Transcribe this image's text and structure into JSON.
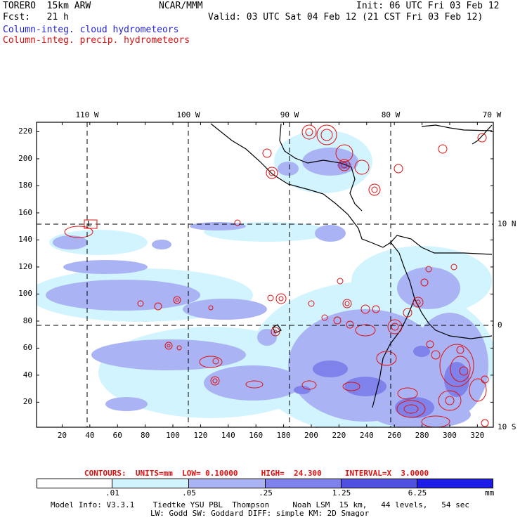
{
  "header": {
    "model": "TORERO  15km ARW",
    "center": "NCAR/MMM",
    "init": "Init: 06 UTC Fri 03 Feb 12",
    "fcst": "Fcst:   21 h",
    "valid": "Valid: 03 UTC Sat 04 Feb 12 (21 CST Fri 03 Feb 12)",
    "field1": "Column-integ. cloud hydrometeors",
    "field2": "Column-integ. precip. hydrometeors"
  },
  "map": {
    "lon_labels": [
      "110 W",
      "100 W",
      "90 W",
      "80 W",
      "70 W"
    ],
    "lat_labels": [
      "10 N",
      "0",
      "10 S"
    ],
    "x_ticks": [
      "20",
      "40",
      "60",
      "80",
      "100",
      "120",
      "140",
      "160",
      "180",
      "200",
      "220",
      "240",
      "260",
      "280",
      "300",
      "320"
    ],
    "y_ticks": [
      "220",
      "200",
      "180",
      "160",
      "140",
      "120",
      "100",
      "80",
      "60",
      "40",
      "20"
    ],
    "low_marker": "L"
  },
  "contours": {
    "label": "CONTOURS:  UNITS=mm  LOW= 0.10000     HIGH=  24.300     INTERVAL=X  3.0000"
  },
  "colorbar": {
    "labels": [
      ".01",
      ".05",
      ".25",
      "1.25",
      "6.25"
    ],
    "unit": "mm",
    "colors": [
      "#ffffff",
      "#d2f4ff",
      "#aab4f4",
      "#7f82ea",
      "#5050e0",
      "#1c1ce6"
    ]
  },
  "footer": {
    "line1": "Model Info: V3.3.1    Tiedtke YSU PBL  Thompson     Noah LSM  15 km,   44 levels,   54 sec",
    "line2": "LW: Godd SW: Goddard DIFF: simple KM: 2D Smagor"
  }
}
